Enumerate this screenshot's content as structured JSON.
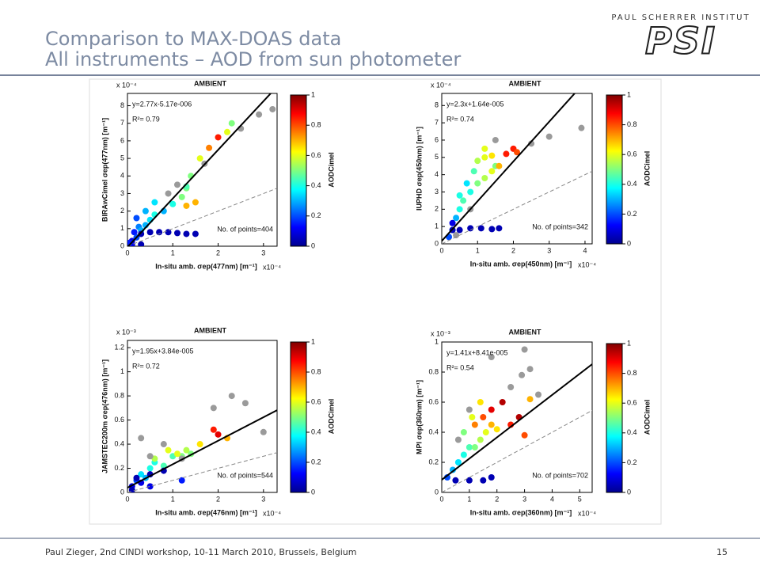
{
  "header": {
    "title_lines": [
      "Comparison to MAX-DOAS data",
      "All instruments – AOD from sun photometer"
    ],
    "logo_org": "PAUL SCHERRER INSTITUT",
    "logo": "PSI"
  },
  "footer": {
    "text": "Paul Zieger, 2nd CINDI workshop, 10-11 March 2010, Brussels, Belgium",
    "page": "15"
  },
  "chart_data": [
    {
      "type": "scatter",
      "title": "AMBIENT",
      "y_multiplier": "x 10⁻⁴",
      "x_multiplier": "x10⁻⁴",
      "ylabel": "BIRAwCimel σep(477nm) [m⁻¹]",
      "xlabel": "In-situ amb. σep(477nm) [m⁻¹]",
      "fit_label": "y=2.77x-5.17e-006",
      "r2_label": "R²= 0.79",
      "points_label": "No. of points=404",
      "colorbar_label": "AODCimel",
      "fit": {
        "slope": 2.77,
        "intercept": -0.0517
      },
      "reference_line": {
        "slope": 1,
        "intercept": 0
      },
      "xlim": [
        0,
        3.3
      ],
      "ylim": [
        0,
        8.7
      ],
      "xticks": [
        0,
        1,
        2,
        3
      ],
      "yticks": [
        0,
        1,
        2,
        3,
        4,
        5,
        6,
        7,
        8
      ],
      "clim": [
        0,
        1
      ],
      "cticks": [
        0,
        0.2,
        0.4,
        0.6,
        0.8,
        1
      ],
      "null_color": "#9a9a9a",
      "x": [
        0.1,
        0.15,
        0.2,
        0.25,
        0.3,
        0.4,
        0.5,
        0.6,
        0.8,
        1.0,
        1.2,
        1.3,
        0.3,
        0.5,
        0.7,
        0.9,
        1.1,
        1.3,
        1.5,
        0.2,
        0.4,
        0.6,
        1.3,
        1.4,
        1.6,
        1.8,
        2.0,
        2.2,
        2.3,
        0.9,
        1.1,
        1.7,
        2.5,
        2.9,
        3.2,
        0.1,
        0.05,
        0.3,
        1.5,
        1.3
      ],
      "y": [
        0.3,
        0.8,
        0.5,
        1.1,
        0.9,
        1.2,
        1.5,
        1.8,
        2.0,
        2.4,
        2.8,
        3.3,
        0.7,
        0.8,
        0.8,
        0.8,
        0.75,
        0.7,
        0.7,
        1.6,
        2.0,
        2.5,
        3.4,
        4.0,
        5.0,
        5.6,
        6.2,
        6.5,
        7.0,
        3.0,
        3.5,
        4.7,
        6.7,
        7.5,
        7.8,
        0.1,
        0.2,
        0.1,
        2.5,
        2.3
      ],
      "c": [
        0.1,
        0.15,
        0.2,
        0.25,
        0.3,
        0.3,
        0.35,
        0.4,
        0.3,
        0.4,
        0.5,
        0.5,
        0.05,
        0.05,
        0.05,
        0.05,
        0.05,
        0.05,
        0.05,
        0.2,
        0.3,
        0.35,
        0.45,
        0.5,
        0.6,
        0.75,
        0.85,
        0.6,
        0.5,
        null,
        null,
        null,
        null,
        null,
        null,
        0.1,
        0.15,
        0.05,
        0.7,
        0.7
      ]
    },
    {
      "type": "scatter",
      "title": "AMBIENT",
      "y_multiplier": "x 10⁻⁴",
      "x_multiplier": "x10⁻⁴",
      "ylabel": "IUPHD σep(450nm) [m⁻¹]",
      "xlabel": "In-situ amb. σep(450nm) [m⁻¹]",
      "fit_label": "y=2.3x+1.64e-005",
      "r2_label": "R²= 0.74",
      "points_label": "No. of points=342",
      "colorbar_label": "AODCimel",
      "fit": {
        "slope": 2.3,
        "intercept": 0.164
      },
      "reference_line": {
        "slope": 1,
        "intercept": 0
      },
      "xlim": [
        0,
        4.2
      ],
      "ylim": [
        0,
        8.7
      ],
      "xticks": [
        0,
        1,
        2,
        3,
        4
      ],
      "yticks": [
        0,
        1,
        2,
        3,
        4,
        5,
        6,
        7,
        8
      ],
      "clim": [
        0,
        1
      ],
      "cticks": [
        0,
        0.2,
        0.4,
        0.6,
        0.8,
        1
      ],
      "null_color": "#9a9a9a",
      "x": [
        0.2,
        0.3,
        0.4,
        0.5,
        0.6,
        0.8,
        1.0,
        1.2,
        1.4,
        1.5,
        0.3,
        0.5,
        0.8,
        1.1,
        1.4,
        1.6,
        1.0,
        1.2,
        1.4,
        1.6,
        1.8,
        2.0,
        2.1,
        0.5,
        0.7,
        0.9,
        1.2,
        0.3,
        2.5,
        3.0,
        3.9,
        1.5,
        0.8,
        0.4
      ],
      "y": [
        0.4,
        0.8,
        1.5,
        2.0,
        2.5,
        3.0,
        3.5,
        3.8,
        4.2,
        4.5,
        0.8,
        0.8,
        0.9,
        0.9,
        0.85,
        0.9,
        4.8,
        5.0,
        5.1,
        4.5,
        5.2,
        5.5,
        5.3,
        2.8,
        3.5,
        4.2,
        5.5,
        1.2,
        5.8,
        6.2,
        6.7,
        6.0,
        2.0,
        0.5
      ],
      "c": [
        0.2,
        0.25,
        0.3,
        0.4,
        0.45,
        0.4,
        0.5,
        0.55,
        0.6,
        0.5,
        0.05,
        0.05,
        0.05,
        0.05,
        0.05,
        0.05,
        0.55,
        0.6,
        0.65,
        0.7,
        0.85,
        0.85,
        0.8,
        0.4,
        0.35,
        0.45,
        0.6,
        0.1,
        null,
        null,
        null,
        null,
        null,
        null
      ]
    },
    {
      "type": "scatter",
      "title": "AMBIENT",
      "y_multiplier": "x 10⁻³",
      "x_multiplier": "x10⁻⁴",
      "ylabel": "JAMSTEC200m σep(476nm) [m⁻¹]",
      "xlabel": "In-situ amb. σep(476nm) [m⁻¹]",
      "fit_label": "y=1.95x+3.84e-005",
      "r2_label": "R²= 0.72",
      "points_label": "No. of points=544",
      "colorbar_label": "AODCimel",
      "fit": {
        "slope": 0.195,
        "intercept": 0.0384
      },
      "reference_line": {
        "slope": 0.1,
        "intercept": 0
      },
      "xlim": [
        0,
        3.3
      ],
      "ylim": [
        0,
        1.26
      ],
      "xticks": [
        0,
        1,
        2,
        3
      ],
      "yticks": [
        0,
        0.2,
        0.4,
        0.6,
        0.8,
        1,
        1.2
      ],
      "clim": [
        0,
        1
      ],
      "cticks": [
        0,
        0.2,
        0.4,
        0.6,
        0.8,
        1
      ],
      "null_color": "#9a9a9a",
      "x": [
        0.1,
        0.2,
        0.3,
        0.4,
        0.5,
        0.6,
        0.8,
        1.0,
        1.2,
        1.4,
        0.2,
        0.5,
        0.8,
        0.6,
        0.9,
        1.1,
        1.3,
        1.6,
        1.9,
        2.0,
        2.2,
        0.3,
        0.5,
        0.8,
        1.2,
        1.9,
        2.3,
        2.6,
        3.0,
        0.1,
        0.3,
        0.5,
        1.2
      ],
      "y": [
        0.05,
        0.1,
        0.15,
        0.12,
        0.2,
        0.25,
        0.22,
        0.3,
        0.3,
        0.32,
        0.12,
        0.15,
        0.18,
        0.28,
        0.35,
        0.32,
        0.35,
        0.4,
        0.52,
        0.48,
        0.45,
        0.45,
        0.3,
        0.4,
        0.28,
        0.7,
        0.8,
        0.74,
        0.5,
        0.02,
        0.08,
        0.05,
        0.1
      ],
      "c": [
        0.1,
        0.2,
        0.35,
        0.3,
        0.4,
        0.4,
        0.45,
        0.45,
        0.5,
        0.5,
        0.05,
        0.05,
        0.05,
        0.55,
        0.6,
        0.6,
        0.55,
        0.65,
        0.85,
        0.9,
        0.7,
        null,
        null,
        null,
        null,
        null,
        null,
        null,
        null,
        0.05,
        0.1,
        0.1,
        0.15
      ]
    },
    {
      "type": "scatter",
      "title": "AMBIENT",
      "y_multiplier": "x 10⁻³",
      "x_multiplier": "x10⁻⁴",
      "ylabel": "MPI σep(360nm) [m⁻¹]",
      "xlabel": "In-situ amb. σep(360nm) [m⁻¹]",
      "fit_label": "y=1.41x+8.41e-005",
      "r2_label": "R²= 0.54",
      "points_label": "No. of points=702",
      "colorbar_label": "AODCimel",
      "fit": {
        "slope": 0.141,
        "intercept": 0.0841
      },
      "reference_line": {
        "slope": 0.1,
        "intercept": 0
      },
      "xlim": [
        0,
        5.45
      ],
      "ylim": [
        0,
        1
      ],
      "xticks": [
        0,
        1,
        2,
        3,
        4,
        5
      ],
      "yticks": [
        0,
        0.2,
        0.4,
        0.6,
        0.8,
        1
      ],
      "clim": [
        0,
        1
      ],
      "cticks": [
        0,
        0.2,
        0.4,
        0.6,
        0.8,
        1
      ],
      "null_color": "#9a9a9a",
      "x": [
        0.2,
        0.4,
        0.6,
        0.8,
        1.0,
        1.2,
        1.4,
        1.6,
        1.8,
        2.0,
        0.5,
        1.0,
        1.5,
        1.8,
        1.2,
        1.5,
        1.8,
        2.2,
        2.5,
        2.8,
        3.0,
        3.2,
        0.8,
        1.1,
        1.4,
        2.5,
        2.9,
        3.2,
        3.5,
        1.0,
        1.8,
        0.6,
        3.0
      ],
      "y": [
        0.1,
        0.15,
        0.2,
        0.25,
        0.3,
        0.3,
        0.35,
        0.4,
        0.45,
        0.42,
        0.08,
        0.08,
        0.08,
        0.1,
        0.45,
        0.5,
        0.55,
        0.6,
        0.45,
        0.5,
        0.38,
        0.62,
        0.4,
        0.5,
        0.6,
        0.7,
        0.78,
        0.82,
        0.65,
        0.55,
        0.9,
        0.35,
        0.95
      ],
      "c": [
        0.2,
        0.3,
        0.35,
        0.4,
        0.45,
        0.5,
        0.55,
        0.6,
        0.7,
        0.65,
        0.05,
        0.05,
        0.05,
        0.05,
        0.75,
        0.8,
        0.9,
        0.95,
        0.85,
        0.95,
        0.8,
        0.7,
        0.5,
        0.6,
        0.65,
        null,
        null,
        null,
        null,
        null,
        null,
        null,
        null
      ]
    }
  ]
}
